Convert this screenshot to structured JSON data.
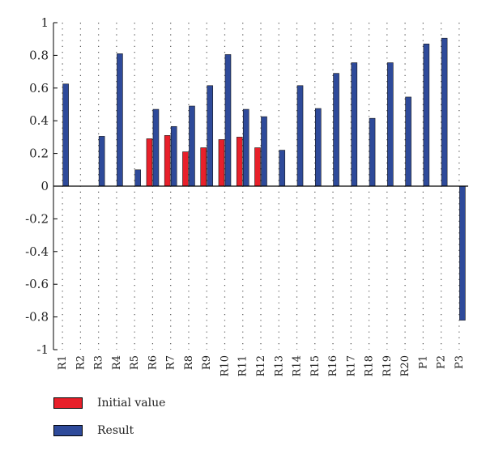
{
  "chart_data": {
    "type": "bar",
    "title": "",
    "xlabel": "",
    "ylabel": "",
    "ylim": [
      -1,
      1
    ],
    "yticks": [
      1,
      0.8,
      0.6,
      0.4,
      0.2,
      0,
      -0.2,
      -0.4,
      -0.6,
      -0.8,
      -1
    ],
    "ytick_labels": [
      "1",
      "0.8",
      "0.6",
      "0.4",
      "0.2",
      "0",
      "-0.2",
      "-0.4",
      "-0.6",
      "-0.8",
      "-1"
    ],
    "grid": "dotted",
    "legend_position": "bottom-left",
    "categories": [
      "R1",
      "R2",
      "R3",
      "R4",
      "R5",
      "R6",
      "R7",
      "R8",
      "R9",
      "R10",
      "R11",
      "R12",
      "R13",
      "R14",
      "R15",
      "R16",
      "R17",
      "R18",
      "R19",
      "R20",
      "P1",
      "P2",
      "P3"
    ],
    "series": [
      {
        "name": "Initial value",
        "color": "#e8202a",
        "values": [
          0,
          0,
          0,
          0,
          0,
          0.29,
          0.31,
          0.21,
          0.235,
          0.285,
          0.3,
          0.235,
          0,
          0,
          0,
          0,
          0,
          0,
          0,
          0,
          0,
          0,
          0
        ]
      },
      {
        "name": "Result",
        "color": "#2e4a9a",
        "values": [
          0.625,
          0,
          0.305,
          0.81,
          0.1,
          0.47,
          0.365,
          0.49,
          0.615,
          0.805,
          0.47,
          0.425,
          0.22,
          0.615,
          0.475,
          0.69,
          0.755,
          0.415,
          0.755,
          0.545,
          0.87,
          0.905,
          -0.82
        ]
      }
    ]
  }
}
